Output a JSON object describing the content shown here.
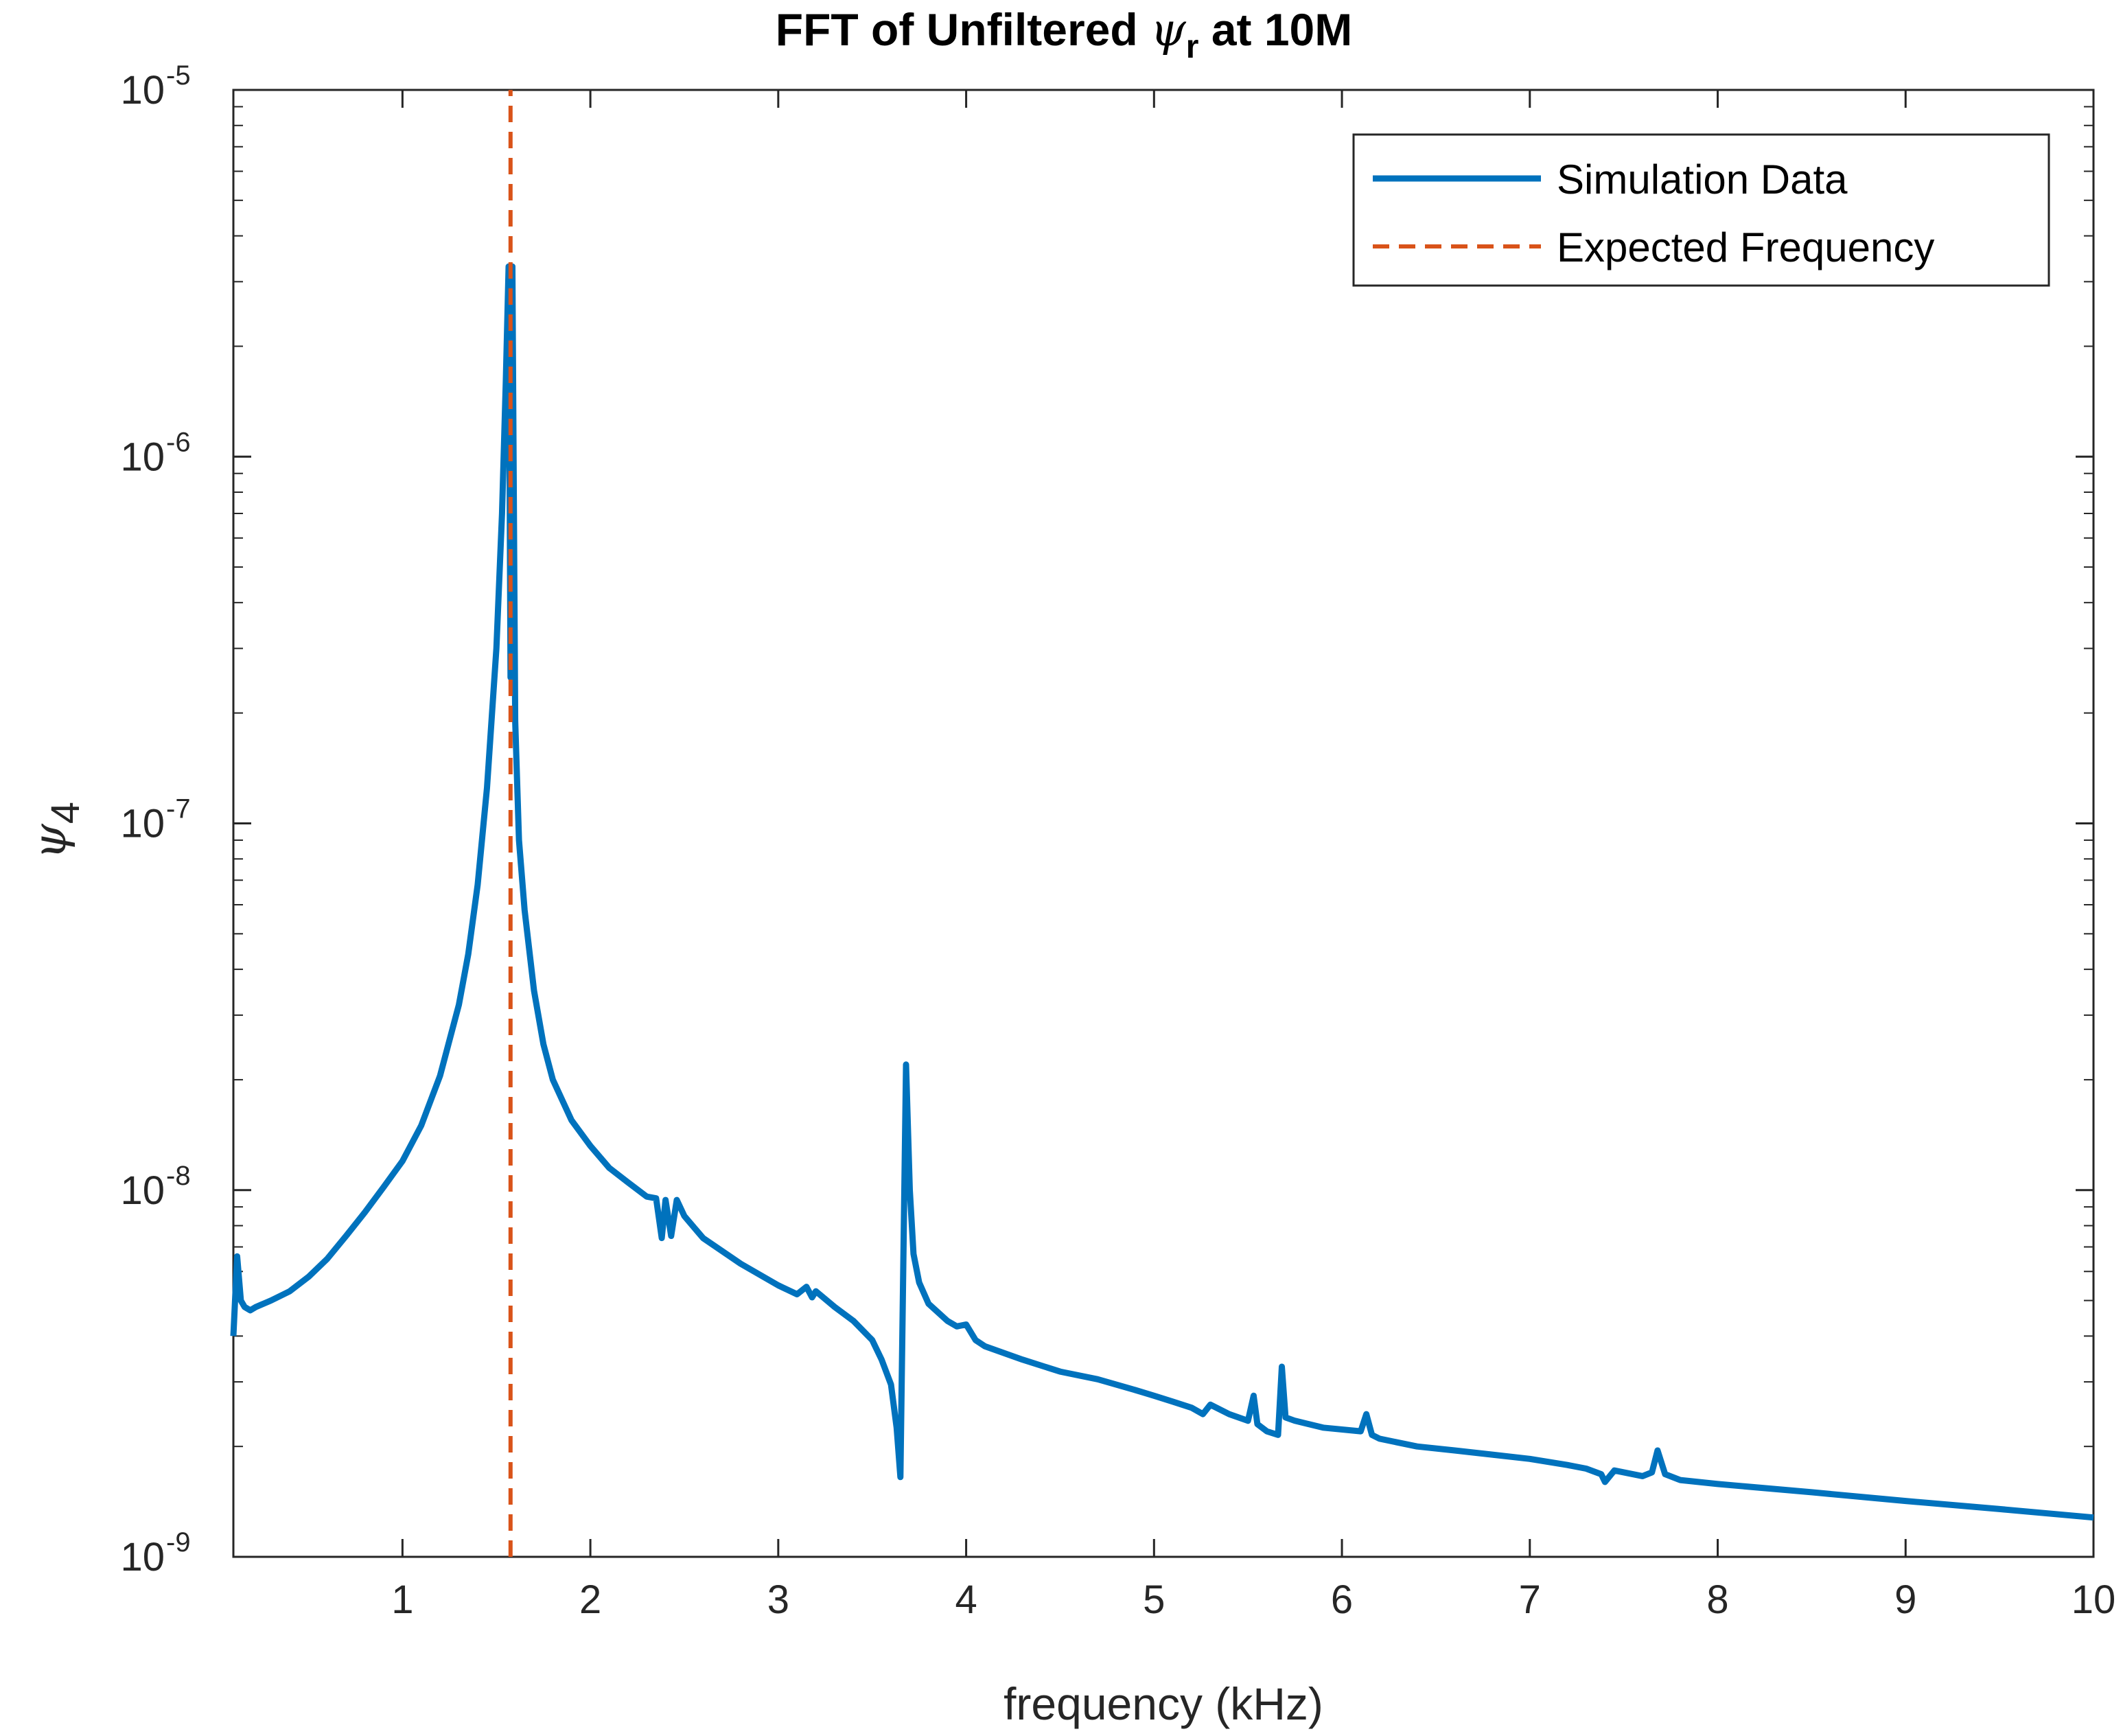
{
  "chart_data": {
    "type": "line",
    "title_prefix": "FFT of Unfiltered ",
    "title_symbol": "ψ",
    "title_subscript": "r",
    "title_suffix": " at 10M",
    "xlabel": "frequency (kHz)",
    "ylabel_symbol": "ψ",
    "ylabel_subscript": "4",
    "xlim": [
      0.1,
      10
    ],
    "ylim": [
      1e-09,
      1e-05
    ],
    "yscale": "log",
    "grid": false,
    "legend_position": "top-right",
    "x_ticks": [
      {
        "value": 1,
        "label": "1"
      },
      {
        "value": 2,
        "label": "2"
      },
      {
        "value": 3,
        "label": "3"
      },
      {
        "value": 4,
        "label": "4"
      },
      {
        "value": 5,
        "label": "5"
      },
      {
        "value": 6,
        "label": "6"
      },
      {
        "value": 7,
        "label": "7"
      },
      {
        "value": 8,
        "label": "8"
      },
      {
        "value": 9,
        "label": "9"
      },
      {
        "value": 10,
        "label": "10"
      }
    ],
    "y_ticks": [
      {
        "value": 1e-09,
        "base": "10",
        "exponent": "-9"
      },
      {
        "value": 1e-08,
        "base": "10",
        "exponent": "-8"
      },
      {
        "value": 1e-07,
        "base": "10",
        "exponent": "-7"
      },
      {
        "value": 1e-06,
        "base": "10",
        "exponent": "-6"
      },
      {
        "value": 1e-05,
        "base": "10",
        "exponent": "-5"
      }
    ],
    "series": [
      {
        "name": "Simulation Data",
        "color": "#0072BD",
        "style": "solid",
        "x": [
          0.1,
          0.12,
          0.14,
          0.16,
          0.19,
          0.22,
          0.3,
          0.4,
          0.5,
          0.6,
          0.7,
          0.8,
          0.9,
          1.0,
          1.1,
          1.2,
          1.3,
          1.35,
          1.4,
          1.45,
          1.5,
          1.53,
          1.55,
          1.565,
          1.575,
          1.585,
          1.6,
          1.62,
          1.65,
          1.7,
          1.75,
          1.8,
          1.9,
          2.0,
          2.1,
          2.2,
          2.3,
          2.35,
          2.38,
          2.4,
          2.43,
          2.46,
          2.5,
          2.6,
          2.8,
          3.0,
          3.1,
          3.15,
          3.18,
          3.2,
          3.3,
          3.4,
          3.5,
          3.55,
          3.6,
          3.63,
          3.65,
          3.68,
          3.7,
          3.72,
          3.75,
          3.8,
          3.9,
          3.95,
          4.0,
          4.05,
          4.1,
          4.3,
          4.5,
          4.7,
          4.9,
          5.0,
          5.1,
          5.2,
          5.26,
          5.3,
          5.4,
          5.5,
          5.53,
          5.55,
          5.6,
          5.66,
          5.68,
          5.7,
          5.75,
          5.9,
          6.1,
          6.13,
          6.16,
          6.2,
          6.4,
          6.6,
          6.8,
          7.0,
          7.2,
          7.3,
          7.38,
          7.4,
          7.45,
          7.6,
          7.65,
          7.68,
          7.72,
          7.8,
          8.0,
          8.5,
          9.0,
          9.5,
          10.0
        ],
        "y": [
          4e-09,
          6.6e-09,
          5e-09,
          4.8e-09,
          4.7e-09,
          4.8e-09,
          5e-09,
          5.3e-09,
          5.8e-09,
          6.5e-09,
          7.5e-09,
          8.7e-09,
          1.02e-08,
          1.2e-08,
          1.5e-08,
          2.05e-08,
          3.2e-08,
          4.4e-08,
          6.8e-08,
          1.25e-07,
          3e-07,
          7e-07,
          1.6e-06,
          3.3e-06,
          2.5e-07,
          3.3e-06,
          1.9e-07,
          9e-08,
          5.8e-08,
          3.5e-08,
          2.5e-08,
          2e-08,
          1.55e-08,
          1.32e-08,
          1.15e-08,
          1.05e-08,
          9.6e-09,
          9.5e-09,
          7.4e-09,
          9.4e-09,
          7.5e-09,
          9.4e-09,
          8.5e-09,
          7.4e-09,
          6.3e-09,
          5.5e-09,
          5.2e-09,
          5.45e-09,
          5.1e-09,
          5.3e-09,
          4.8e-09,
          4.4e-09,
          3.9e-09,
          3.45e-09,
          2.95e-09,
          2.25e-09,
          1.65e-09,
          2.2e-08,
          1e-08,
          6.7e-09,
          5.6e-09,
          4.9e-09,
          4.4e-09,
          4.25e-09,
          4.3e-09,
          3.9e-09,
          3.75e-09,
          3.45e-09,
          3.2e-09,
          3.05e-09,
          2.85e-09,
          2.75e-09,
          2.65e-09,
          2.55e-09,
          2.45e-09,
          2.6e-09,
          2.45e-09,
          2.35e-09,
          2.75e-09,
          2.3e-09,
          2.2e-09,
          2.15e-09,
          3.3e-09,
          2.4e-09,
          2.35e-09,
          2.25e-09,
          2.2e-09,
          2.45e-09,
          2.15e-09,
          2.1e-09,
          2e-09,
          1.95e-09,
          1.9e-09,
          1.85e-09,
          1.78e-09,
          1.74e-09,
          1.68e-09,
          1.6e-09,
          1.72e-09,
          1.66e-09,
          1.7e-09,
          1.95e-09,
          1.68e-09,
          1.62e-09,
          1.58e-09,
          1.5e-09,
          1.42e-09,
          1.35e-09,
          1.28e-09
        ]
      },
      {
        "name": "Expected Frequency",
        "color": "#D95319",
        "style": "dashed",
        "x": [
          1.575,
          1.575
        ],
        "y": [
          1e-09,
          1e-05
        ]
      }
    ]
  }
}
